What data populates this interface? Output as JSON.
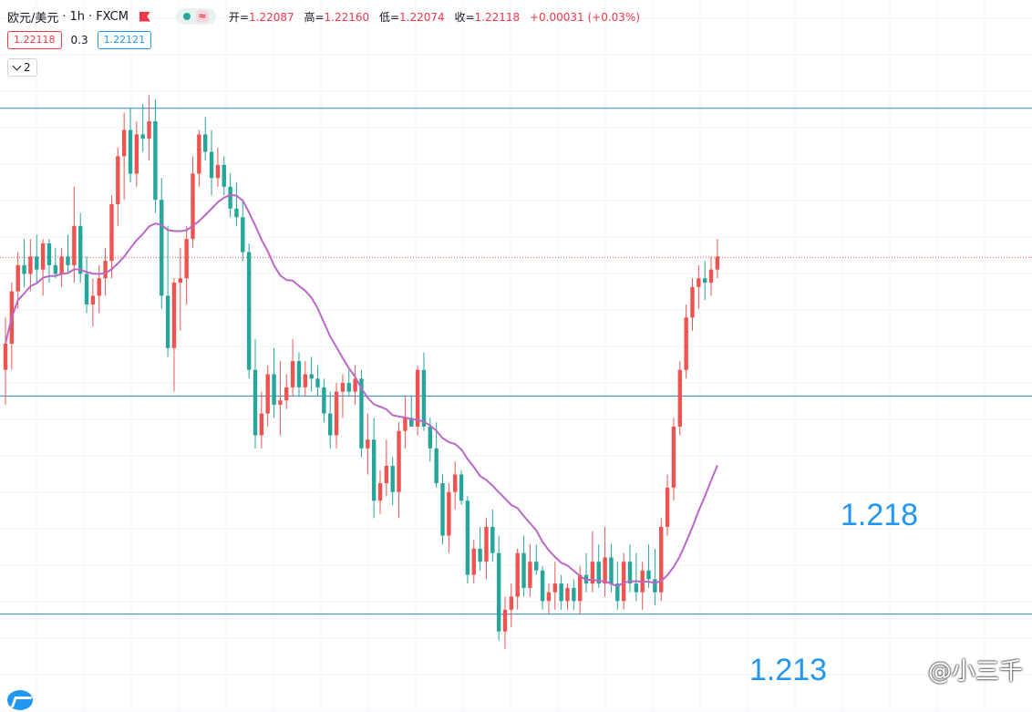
{
  "header": {
    "symbol": "欧元/美元",
    "interval": "1h",
    "source": "FXCM",
    "ohlc": {
      "open_label": "开=",
      "open": "1.22087",
      "high_label": "高=",
      "high": "1.22160",
      "low_label": "低=",
      "low": "1.22074",
      "close_label": "收=",
      "close": "1.22118",
      "change": "+0.00031 (+0.03%)"
    }
  },
  "quote": {
    "sell": "1.22118",
    "spread": "0.3",
    "buy": "1.22121"
  },
  "indicators_toggle": {
    "count": "2"
  },
  "annotations": {
    "level_upper": "1.218",
    "level_lower": "1.213"
  },
  "watermark": "@小三千",
  "colors": {
    "up": "#ef5350",
    "down": "#26a69a",
    "ma": "#ba68c8",
    "hline": "#2e84c6",
    "price_line": "#ef5350",
    "grid": "#f0f3fa"
  },
  "chart_data": {
    "type": "candlestick",
    "y_range": [
      1.2118,
      1.2252
    ],
    "horizontal_lines": [
      1.2246,
      1.218,
      1.213
    ],
    "current_price_line": 1.22118,
    "candles": [
      {
        "o": 1.2186,
        "h": 1.2198,
        "l": 1.2178,
        "c": 1.2192
      },
      {
        "o": 1.2192,
        "h": 1.2206,
        "l": 1.2186,
        "c": 1.2204
      },
      {
        "o": 1.2204,
        "h": 1.2213,
        "l": 1.22,
        "c": 1.221
      },
      {
        "o": 1.221,
        "h": 1.2216,
        "l": 1.2205,
        "c": 1.2208
      },
      {
        "o": 1.2208,
        "h": 1.2216,
        "l": 1.2204,
        "c": 1.2212
      },
      {
        "o": 1.2212,
        "h": 1.2217,
        "l": 1.2206,
        "c": 1.2209
      },
      {
        "o": 1.2209,
        "h": 1.2216,
        "l": 1.2203,
        "c": 1.2215
      },
      {
        "o": 1.2215,
        "h": 1.2216,
        "l": 1.2206,
        "c": 1.221
      },
      {
        "o": 1.221,
        "h": 1.2214,
        "l": 1.2207,
        "c": 1.2208
      },
      {
        "o": 1.2208,
        "h": 1.2214,
        "l": 1.2205,
        "c": 1.2212
      },
      {
        "o": 1.2212,
        "h": 1.2217,
        "l": 1.2208,
        "c": 1.221
      },
      {
        "o": 1.221,
        "h": 1.2228,
        "l": 1.2206,
        "c": 1.2219
      },
      {
        "o": 1.2219,
        "h": 1.2222,
        "l": 1.2206,
        "c": 1.2208
      },
      {
        "o": 1.2208,
        "h": 1.2212,
        "l": 1.2199,
        "c": 1.2201
      },
      {
        "o": 1.2201,
        "h": 1.2207,
        "l": 1.2196,
        "c": 1.2203
      },
      {
        "o": 1.2203,
        "h": 1.221,
        "l": 1.2199,
        "c": 1.2207
      },
      {
        "o": 1.2207,
        "h": 1.2214,
        "l": 1.2203,
        "c": 1.2211
      },
      {
        "o": 1.2211,
        "h": 1.2226,
        "l": 1.2207,
        "c": 1.2224
      },
      {
        "o": 1.2224,
        "h": 1.2237,
        "l": 1.2219,
        "c": 1.2235
      },
      {
        "o": 1.2235,
        "h": 1.2245,
        "l": 1.2225,
        "c": 1.2241
      },
      {
        "o": 1.2241,
        "h": 1.2246,
        "l": 1.2229,
        "c": 1.2231
      },
      {
        "o": 1.2231,
        "h": 1.2243,
        "l": 1.2228,
        "c": 1.224
      },
      {
        "o": 1.224,
        "h": 1.2247,
        "l": 1.2236,
        "c": 1.2239
      },
      {
        "o": 1.2239,
        "h": 1.2249,
        "l": 1.2234,
        "c": 1.2243
      },
      {
        "o": 1.2243,
        "h": 1.2248,
        "l": 1.2222,
        "c": 1.2225
      },
      {
        "o": 1.2225,
        "h": 1.223,
        "l": 1.22,
        "c": 1.2203
      },
      {
        "o": 1.2203,
        "h": 1.2219,
        "l": 1.2189,
        "c": 1.2191
      },
      {
        "o": 1.2191,
        "h": 1.2207,
        "l": 1.2181,
        "c": 1.2206
      },
      {
        "o": 1.2206,
        "h": 1.2214,
        "l": 1.2195,
        "c": 1.2207
      },
      {
        "o": 1.2207,
        "h": 1.2219,
        "l": 1.2201,
        "c": 1.2216
      },
      {
        "o": 1.2216,
        "h": 1.2235,
        "l": 1.2214,
        "c": 1.2231
      },
      {
        "o": 1.2231,
        "h": 1.2241,
        "l": 1.2228,
        "c": 1.224
      },
      {
        "o": 1.224,
        "h": 1.2244,
        "l": 1.2234,
        "c": 1.2236
      },
      {
        "o": 1.2236,
        "h": 1.2241,
        "l": 1.2226,
        "c": 1.223
      },
      {
        "o": 1.223,
        "h": 1.2237,
        "l": 1.2228,
        "c": 1.2233
      },
      {
        "o": 1.2233,
        "h": 1.2235,
        "l": 1.2226,
        "c": 1.2228
      },
      {
        "o": 1.2228,
        "h": 1.2231,
        "l": 1.2221,
        "c": 1.2223
      },
      {
        "o": 1.2223,
        "h": 1.2229,
        "l": 1.2219,
        "c": 1.2221
      },
      {
        "o": 1.2221,
        "h": 1.2225,
        "l": 1.2211,
        "c": 1.2213
      },
      {
        "o": 1.2213,
        "h": 1.2215,
        "l": 1.2184,
        "c": 1.2186
      },
      {
        "o": 1.2186,
        "h": 1.2193,
        "l": 1.2168,
        "c": 1.2171
      },
      {
        "o": 1.2171,
        "h": 1.2181,
        "l": 1.2168,
        "c": 1.2176
      },
      {
        "o": 1.2176,
        "h": 1.2187,
        "l": 1.2173,
        "c": 1.2185
      },
      {
        "o": 1.2185,
        "h": 1.2191,
        "l": 1.2175,
        "c": 1.2178
      },
      {
        "o": 1.2178,
        "h": 1.2188,
        "l": 1.2171,
        "c": 1.2179
      },
      {
        "o": 1.2179,
        "h": 1.2185,
        "l": 1.2177,
        "c": 1.2182
      },
      {
        "o": 1.2182,
        "h": 1.2193,
        "l": 1.218,
        "c": 1.2188
      },
      {
        "o": 1.2188,
        "h": 1.219,
        "l": 1.218,
        "c": 1.2182
      },
      {
        "o": 1.2182,
        "h": 1.2188,
        "l": 1.218,
        "c": 1.2185
      },
      {
        "o": 1.2185,
        "h": 1.2189,
        "l": 1.2181,
        "c": 1.2184
      },
      {
        "o": 1.2184,
        "h": 1.2187,
        "l": 1.218,
        "c": 1.2182
      },
      {
        "o": 1.2182,
        "h": 1.2184,
        "l": 1.2174,
        "c": 1.2176
      },
      {
        "o": 1.2176,
        "h": 1.2181,
        "l": 1.2168,
        "c": 1.2171
      },
      {
        "o": 1.2171,
        "h": 1.2183,
        "l": 1.2168,
        "c": 1.2181
      },
      {
        "o": 1.2181,
        "h": 1.2185,
        "l": 1.2175,
        "c": 1.2183
      },
      {
        "o": 1.2183,
        "h": 1.2186,
        "l": 1.218,
        "c": 1.2181
      },
      {
        "o": 1.2181,
        "h": 1.2187,
        "l": 1.2178,
        "c": 1.2184
      },
      {
        "o": 1.2184,
        "h": 1.2186,
        "l": 1.2166,
        "c": 1.2168
      },
      {
        "o": 1.2168,
        "h": 1.2176,
        "l": 1.2162,
        "c": 1.217
      },
      {
        "o": 1.217,
        "h": 1.2175,
        "l": 1.2152,
        "c": 1.2156
      },
      {
        "o": 1.2156,
        "h": 1.2163,
        "l": 1.2153,
        "c": 1.216
      },
      {
        "o": 1.216,
        "h": 1.217,
        "l": 1.2157,
        "c": 1.2164
      },
      {
        "o": 1.2164,
        "h": 1.2166,
        "l": 1.2155,
        "c": 1.2158
      },
      {
        "o": 1.2158,
        "h": 1.2174,
        "l": 1.2152,
        "c": 1.2172
      },
      {
        "o": 1.2172,
        "h": 1.218,
        "l": 1.2168,
        "c": 1.2175
      },
      {
        "o": 1.2175,
        "h": 1.218,
        "l": 1.2173,
        "c": 1.2173
      },
      {
        "o": 1.2173,
        "h": 1.2187,
        "l": 1.2171,
        "c": 1.2186
      },
      {
        "o": 1.2186,
        "h": 1.219,
        "l": 1.2172,
        "c": 1.2173
      },
      {
        "o": 1.2173,
        "h": 1.2175,
        "l": 1.2165,
        "c": 1.2168
      },
      {
        "o": 1.2168,
        "h": 1.2174,
        "l": 1.2159,
        "c": 1.216
      },
      {
        "o": 1.216,
        "h": 1.2162,
        "l": 1.2146,
        "c": 1.2148
      },
      {
        "o": 1.2148,
        "h": 1.216,
        "l": 1.2144,
        "c": 1.2158
      },
      {
        "o": 1.2158,
        "h": 1.2165,
        "l": 1.2154,
        "c": 1.2162
      },
      {
        "o": 1.2162,
        "h": 1.2163,
        "l": 1.2155,
        "c": 1.2156
      },
      {
        "o": 1.2156,
        "h": 1.2157,
        "l": 1.2137,
        "c": 1.2139
      },
      {
        "o": 1.2139,
        "h": 1.2147,
        "l": 1.2137,
        "c": 1.2145
      },
      {
        "o": 1.2145,
        "h": 1.215,
        "l": 1.214,
        "c": 1.2142
      },
      {
        "o": 1.2142,
        "h": 1.2152,
        "l": 1.2138,
        "c": 1.215
      },
      {
        "o": 1.215,
        "h": 1.2154,
        "l": 1.2142,
        "c": 1.2144
      },
      {
        "o": 1.2144,
        "h": 1.2148,
        "l": 1.2124,
        "c": 1.2126
      },
      {
        "o": 1.2126,
        "h": 1.2134,
        "l": 1.2122,
        "c": 1.2131
      },
      {
        "o": 1.2131,
        "h": 1.2137,
        "l": 1.2127,
        "c": 1.2134
      },
      {
        "o": 1.2134,
        "h": 1.2145,
        "l": 1.2131,
        "c": 1.2144
      },
      {
        "o": 1.2144,
        "h": 1.2148,
        "l": 1.2134,
        "c": 1.2136
      },
      {
        "o": 1.2136,
        "h": 1.2146,
        "l": 1.2134,
        "c": 1.2142
      },
      {
        "o": 1.2142,
        "h": 1.2146,
        "l": 1.2139,
        "c": 1.214
      },
      {
        "o": 1.214,
        "h": 1.2141,
        "l": 1.2131,
        "c": 1.2133
      },
      {
        "o": 1.2133,
        "h": 1.2137,
        "l": 1.213,
        "c": 1.2135
      },
      {
        "o": 1.2135,
        "h": 1.2142,
        "l": 1.2131,
        "c": 1.2137
      },
      {
        "o": 1.2137,
        "h": 1.2139,
        "l": 1.2131,
        "c": 1.2133
      },
      {
        "o": 1.2133,
        "h": 1.2137,
        "l": 1.2131,
        "c": 1.2136
      },
      {
        "o": 1.2136,
        "h": 1.2138,
        "l": 1.2131,
        "c": 1.2133
      },
      {
        "o": 1.2133,
        "h": 1.2141,
        "l": 1.213,
        "c": 1.2139
      },
      {
        "o": 1.2139,
        "h": 1.2144,
        "l": 1.2135,
        "c": 1.2137
      },
      {
        "o": 1.2137,
        "h": 1.2149,
        "l": 1.2135,
        "c": 1.2142
      },
      {
        "o": 1.2142,
        "h": 1.2146,
        "l": 1.2136,
        "c": 1.2137
      },
      {
        "o": 1.2137,
        "h": 1.215,
        "l": 1.2134,
        "c": 1.2143
      },
      {
        "o": 1.2143,
        "h": 1.2146,
        "l": 1.2135,
        "c": 1.2137
      },
      {
        "o": 1.2137,
        "h": 1.2142,
        "l": 1.2131,
        "c": 1.2133
      },
      {
        "o": 1.2133,
        "h": 1.2144,
        "l": 1.2131,
        "c": 1.2142
      },
      {
        "o": 1.2142,
        "h": 1.2146,
        "l": 1.2135,
        "c": 1.2137
      },
      {
        "o": 1.2137,
        "h": 1.2144,
        "l": 1.2133,
        "c": 1.2135
      },
      {
        "o": 1.2135,
        "h": 1.2142,
        "l": 1.2131,
        "c": 1.214
      },
      {
        "o": 1.214,
        "h": 1.2146,
        "l": 1.2136,
        "c": 1.2138
      },
      {
        "o": 1.2138,
        "h": 1.2145,
        "l": 1.2132,
        "c": 1.2135
      },
      {
        "o": 1.2135,
        "h": 1.2152,
        "l": 1.2133,
        "c": 1.215
      },
      {
        "o": 1.215,
        "h": 1.2162,
        "l": 1.2148,
        "c": 1.2159
      },
      {
        "o": 1.2159,
        "h": 1.2175,
        "l": 1.2156,
        "c": 1.2173
      },
      {
        "o": 1.2173,
        "h": 1.2188,
        "l": 1.2171,
        "c": 1.2186
      },
      {
        "o": 1.2186,
        "h": 1.2201,
        "l": 1.2184,
        "c": 1.2198
      },
      {
        "o": 1.2198,
        "h": 1.2207,
        "l": 1.2195,
        "c": 1.2205
      },
      {
        "o": 1.2205,
        "h": 1.221,
        "l": 1.22,
        "c": 1.2207
      },
      {
        "o": 1.2207,
        "h": 1.2211,
        "l": 1.2202,
        "c": 1.2206
      },
      {
        "o": 1.2206,
        "h": 1.2212,
        "l": 1.2203,
        "c": 1.2209
      },
      {
        "o": 1.2209,
        "h": 1.2216,
        "l": 1.2207,
        "c": 1.2212
      }
    ],
    "ma": {
      "period": 20
    }
  }
}
